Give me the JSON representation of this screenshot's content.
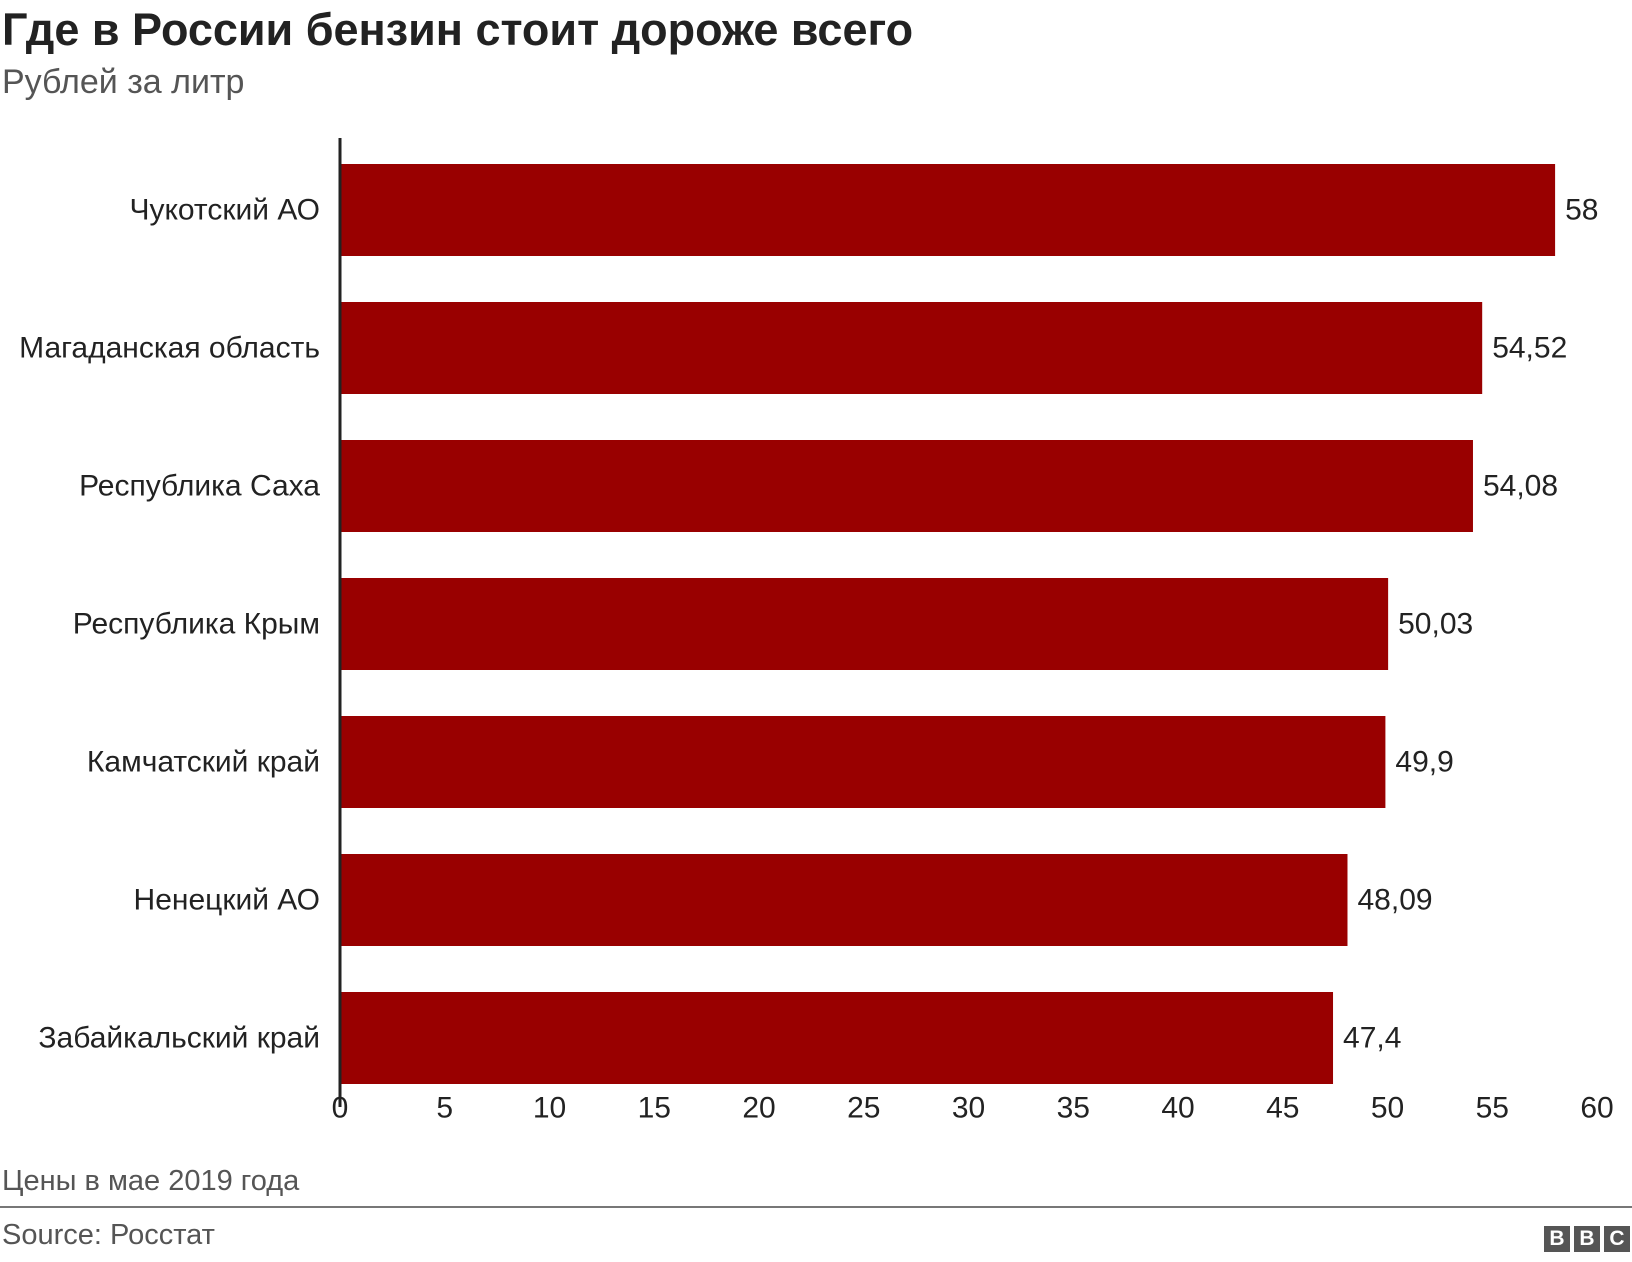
{
  "header": {
    "title": "Где в России бензин стоит дороже всего",
    "subtitle": "Рублей за литр"
  },
  "footer": {
    "note": "Цены в мае 2019 года",
    "source": "Source: Росстат",
    "logo_letters": [
      "B",
      "B",
      "C"
    ]
  },
  "colors": {
    "bar": "#990000",
    "axis": "#222222",
    "text": "#222222",
    "muted": "#555555"
  },
  "chart_data": {
    "type": "bar",
    "orientation": "horizontal",
    "title": "Где в России бензин стоит дороже всего",
    "subtitle": "Рублей за литр",
    "categories": [
      "Чукотский АО",
      "Магаданская область",
      "Республика Саха",
      "Республика Крым",
      "Камчатский край",
      "Ненецкий АО",
      "Забайкальский край"
    ],
    "values": [
      58,
      54.52,
      54.08,
      50.03,
      49.9,
      48.09,
      47.4
    ],
    "value_labels": [
      "58",
      "54,52",
      "54,08",
      "50,03",
      "49,9",
      "48,09",
      "47,4"
    ],
    "xlim": [
      0,
      60
    ],
    "xticks": [
      0,
      5,
      10,
      15,
      20,
      25,
      30,
      35,
      40,
      45,
      50,
      55,
      60
    ],
    "grid": false,
    "legend": "none"
  }
}
